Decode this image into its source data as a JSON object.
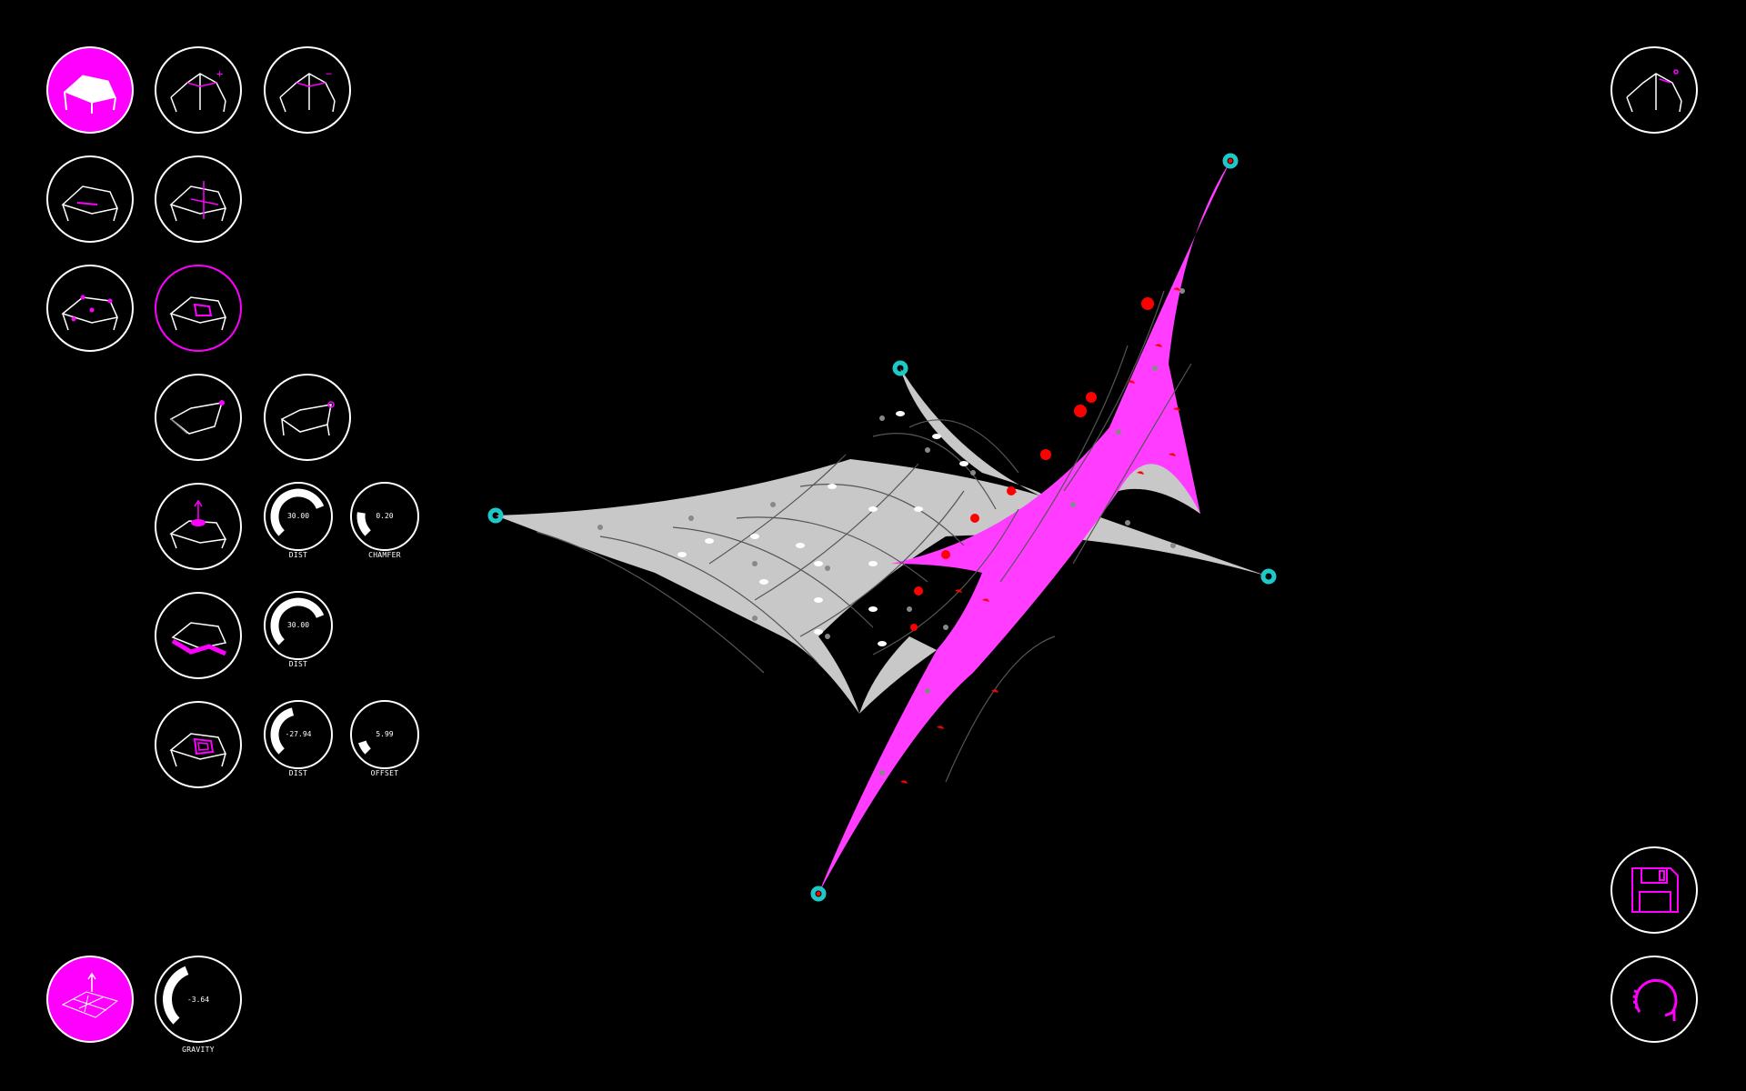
{
  "colors": {
    "accent": "#ff00ff",
    "background": "#000000",
    "surface": "#c8c8c8",
    "anchor": "#1ec8c8",
    "marker": "#ff0000"
  },
  "toolbar": {
    "row1": [
      "surface-mode-icon",
      "add-panel-icon",
      "remove-panel-icon"
    ],
    "row2": [
      "edge-select-icon",
      "move-node-icon"
    ],
    "row3": [
      "node-select-icon",
      "panel-select-icon"
    ],
    "row4": [
      "anchor-corner-icon",
      "anchor-edge-icon"
    ]
  },
  "dials": {
    "extrude_dist": {
      "value": "30.00",
      "label": "DIST",
      "fraction": 0.75
    },
    "extrude_chamfer": {
      "value": "0.20",
      "label": "CHAMFER",
      "fraction": 0.2
    },
    "edge_dist": {
      "value": "30.00",
      "label": "DIST",
      "fraction": 0.75
    },
    "inset_dist": {
      "value": "-27.94",
      "label": "DIST",
      "fraction": 0.45
    },
    "inset_offset": {
      "value": "5.99",
      "label": "OFFSET",
      "fraction": 0.1
    },
    "gravity": {
      "value": "-3.64",
      "label": "GRAVITY",
      "fraction": 0.42
    }
  },
  "right_controls": [
    "perspective-view-icon",
    "save-icon",
    "reset-icon"
  ]
}
